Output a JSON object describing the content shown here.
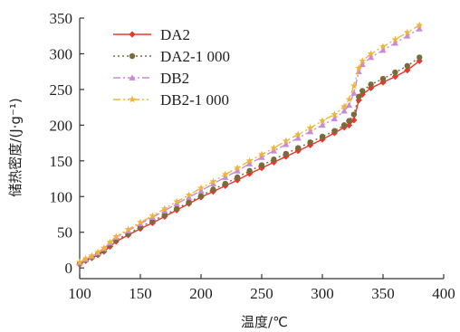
{
  "chart_data": {
    "type": "line",
    "title": "",
    "xlabel": "温度/℃",
    "ylabel": "储热密度/(J·g⁻¹)",
    "xlim": [
      100,
      400
    ],
    "ylim": [
      -15,
      350
    ],
    "xticks": [
      "100",
      "150",
      "200",
      "250",
      "300",
      "350",
      "400"
    ],
    "yticks": [
      "0",
      "50",
      "100",
      "150",
      "200",
      "250",
      "300",
      "350"
    ],
    "legend_position": "top-left",
    "series": [
      {
        "name": "DA2",
        "color": "#e8372d",
        "marker": "diamond",
        "dash": "solid",
        "points": [
          [
            100,
            5
          ],
          [
            105,
            10
          ],
          [
            110,
            14
          ],
          [
            115,
            18
          ],
          [
            120,
            23
          ],
          [
            125,
            30
          ],
          [
            130,
            37
          ],
          [
            140,
            46
          ],
          [
            150,
            55
          ],
          [
            160,
            63
          ],
          [
            170,
            72
          ],
          [
            180,
            81
          ],
          [
            190,
            90
          ],
          [
            200,
            99
          ],
          [
            210,
            107
          ],
          [
            220,
            115
          ],
          [
            230,
            123
          ],
          [
            240,
            132
          ],
          [
            250,
            140
          ],
          [
            260,
            148
          ],
          [
            270,
            156
          ],
          [
            280,
            164
          ],
          [
            290,
            172
          ],
          [
            300,
            180
          ],
          [
            310,
            189
          ],
          [
            318,
            197
          ],
          [
            322,
            200
          ],
          [
            326,
            207
          ],
          [
            330,
            235
          ],
          [
            333,
            243
          ],
          [
            340,
            252
          ],
          [
            350,
            260
          ],
          [
            360,
            268
          ],
          [
            370,
            277
          ],
          [
            380,
            290
          ]
        ]
      },
      {
        "name": "DA2-1 000",
        "color": "#7a6b3a",
        "marker": "circle",
        "dash": "dot",
        "points": [
          [
            100,
            6
          ],
          [
            105,
            11
          ],
          [
            110,
            15
          ],
          [
            115,
            19
          ],
          [
            120,
            24
          ],
          [
            125,
            32
          ],
          [
            130,
            39
          ],
          [
            140,
            48
          ],
          [
            150,
            57
          ],
          [
            160,
            66
          ],
          [
            170,
            74
          ],
          [
            180,
            83
          ],
          [
            190,
            92
          ],
          [
            200,
            101
          ],
          [
            210,
            110
          ],
          [
            220,
            118
          ],
          [
            230,
            127
          ],
          [
            240,
            136
          ],
          [
            250,
            144
          ],
          [
            260,
            152
          ],
          [
            270,
            160
          ],
          [
            280,
            168
          ],
          [
            290,
            176
          ],
          [
            300,
            184
          ],
          [
            310,
            192
          ],
          [
            318,
            200
          ],
          [
            322,
            206
          ],
          [
            326,
            215
          ],
          [
            330,
            240
          ],
          [
            333,
            248
          ],
          [
            340,
            257
          ],
          [
            350,
            265
          ],
          [
            360,
            274
          ],
          [
            370,
            283
          ],
          [
            380,
            295
          ]
        ]
      },
      {
        "name": "DB2",
        "color": "#c98ad6",
        "marker": "triangle",
        "dash": "dashdot",
        "points": [
          [
            100,
            7
          ],
          [
            105,
            12
          ],
          [
            110,
            16
          ],
          [
            115,
            21
          ],
          [
            120,
            27
          ],
          [
            125,
            35
          ],
          [
            130,
            43
          ],
          [
            140,
            52
          ],
          [
            150,
            62
          ],
          [
            160,
            71
          ],
          [
            170,
            80
          ],
          [
            180,
            90
          ],
          [
            190,
            99
          ],
          [
            200,
            108
          ],
          [
            210,
            118
          ],
          [
            220,
            127
          ],
          [
            230,
            136
          ],
          [
            240,
            146
          ],
          [
            250,
            155
          ],
          [
            260,
            164
          ],
          [
            270,
            173
          ],
          [
            280,
            182
          ],
          [
            290,
            191
          ],
          [
            300,
            200
          ],
          [
            310,
            209
          ],
          [
            318,
            220
          ],
          [
            322,
            228
          ],
          [
            326,
            245
          ],
          [
            330,
            275
          ],
          [
            333,
            285
          ],
          [
            340,
            295
          ],
          [
            350,
            305
          ],
          [
            360,
            315
          ],
          [
            370,
            325
          ],
          [
            380,
            335
          ]
        ]
      },
      {
        "name": "DB2-1 000",
        "color": "#f0b43c",
        "marker": "star",
        "dash": "dashdotdot",
        "points": [
          [
            100,
            8
          ],
          [
            105,
            13
          ],
          [
            110,
            17
          ],
          [
            115,
            22
          ],
          [
            120,
            28
          ],
          [
            125,
            36
          ],
          [
            130,
            44
          ],
          [
            140,
            54
          ],
          [
            150,
            64
          ],
          [
            160,
            73
          ],
          [
            170,
            83
          ],
          [
            180,
            93
          ],
          [
            190,
            102
          ],
          [
            200,
            112
          ],
          [
            210,
            121
          ],
          [
            220,
            131
          ],
          [
            230,
            140
          ],
          [
            240,
            150
          ],
          [
            250,
            159
          ],
          [
            260,
            168
          ],
          [
            270,
            178
          ],
          [
            280,
            187
          ],
          [
            290,
            196
          ],
          [
            300,
            206
          ],
          [
            310,
            215
          ],
          [
            318,
            226
          ],
          [
            322,
            236
          ],
          [
            326,
            255
          ],
          [
            330,
            280
          ],
          [
            333,
            290
          ],
          [
            340,
            300
          ],
          [
            350,
            310
          ],
          [
            360,
            320
          ],
          [
            370,
            330
          ],
          [
            380,
            340
          ]
        ]
      }
    ]
  }
}
